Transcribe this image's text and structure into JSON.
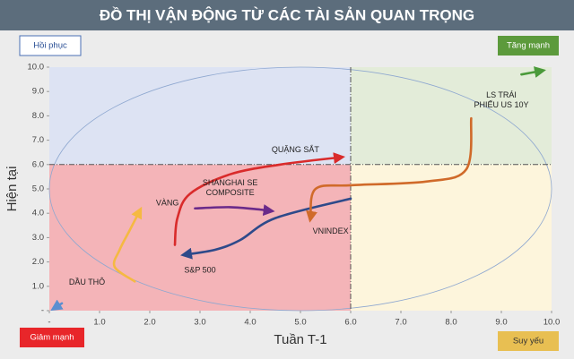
{
  "chart_data": {
    "type": "trajectory",
    "title": "ĐỒ THỊ VẬN ĐỘNG TỪ CÁC TÀI SẢN QUAN TRỌNG",
    "x_label": "Tuần T-1",
    "y_label": "Hiện tại",
    "quadrants": {
      "top_left": "Hồi phục",
      "top_right": "Tăng mạnh",
      "bottom_left": "Giảm mạnh",
      "bottom_right": "Suy yếu"
    },
    "xlim": [
      0,
      10
    ],
    "ylim": [
      0,
      10
    ],
    "xticks": [
      {
        "value": 0,
        "label": "-"
      },
      {
        "value": 1,
        "label": "1.0"
      },
      {
        "value": 2,
        "label": "2.0"
      },
      {
        "value": 3,
        "label": "3.0"
      },
      {
        "value": 4,
        "label": "4.0"
      },
      {
        "value": 5,
        "label": "5.0"
      },
      {
        "value": 6,
        "label": "6.0"
      },
      {
        "value": 7,
        "label": "7.0"
      },
      {
        "value": 8,
        "label": "8.0"
      },
      {
        "value": 9,
        "label": "9.0"
      },
      {
        "value": 10,
        "label": "10.0"
      }
    ],
    "yticks": [
      {
        "value": 0,
        "label": "-"
      },
      {
        "value": 1,
        "label": "1.0"
      },
      {
        "value": 2,
        "label": "2.0"
      },
      {
        "value": 3,
        "label": "3.0"
      },
      {
        "value": 4,
        "label": "4.0"
      },
      {
        "value": 5,
        "label": "5.0"
      },
      {
        "value": 6,
        "label": "6.0"
      },
      {
        "value": 7,
        "label": "7.0"
      },
      {
        "value": 8,
        "label": "8.0"
      },
      {
        "value": 9,
        "label": "9.0"
      },
      {
        "value": 10,
        "label": "10.0"
      }
    ],
    "divider": [
      6,
      6
    ],
    "series": [
      {
        "name": "QUẶNG SẮT",
        "color": "#d92b2b",
        "x": [
          2.5,
          2.55,
          2.8,
          3.6,
          4.6,
          5.8
        ],
        "values": [
          2.7,
          3.8,
          4.8,
          5.6,
          6.0,
          6.3
        ]
      },
      {
        "name": "SHANGHAI SE COMPOSITE",
        "color": "#6a2a8a",
        "x": [
          2.9,
          3.6,
          4.2,
          4.4
        ],
        "values": [
          4.2,
          4.25,
          4.15,
          4.1
        ]
      },
      {
        "name": "VÀNG",
        "color": "#f5b942",
        "x": [
          1.7,
          1.3,
          1.4,
          1.6,
          1.8
        ],
        "values": [
          1.2,
          1.8,
          2.5,
          3.3,
          4.1
        ]
      },
      {
        "name": "S&P 500",
        "color": "#2e4a8a",
        "x": [
          6.0,
          4.5,
          3.8,
          3.3,
          2.7
        ],
        "values": [
          4.6,
          3.8,
          2.9,
          2.5,
          2.3
        ]
      },
      {
        "name": "VNINDEX",
        "color": "#d06a2a",
        "x": [
          8.4,
          8.3,
          7.5,
          6.0,
          5.3,
          5.2
        ],
        "values": [
          7.9,
          5.8,
          5.3,
          5.15,
          5.0,
          3.8
        ]
      },
      {
        "name": "LS TRÁI PHIẾU US 10Y",
        "color": "#4a9a3a",
        "x": [
          9.4,
          9.8
        ],
        "values": [
          9.7,
          9.85
        ]
      },
      {
        "name": "DẦU THÔ",
        "color": "#5b8fd0",
        "x": [
          0.25,
          0.1
        ],
        "values": [
          0.3,
          0.1
        ]
      }
    ]
  }
}
